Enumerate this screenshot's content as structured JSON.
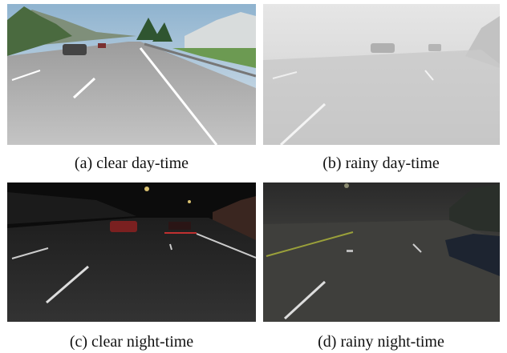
{
  "figure": {
    "panels": [
      {
        "caption": "(a) clear day-time"
      },
      {
        "caption": "(b) rainy day-time"
      },
      {
        "caption": "(c) clear night-time"
      },
      {
        "caption": "(d) rainy night-time"
      }
    ]
  }
}
